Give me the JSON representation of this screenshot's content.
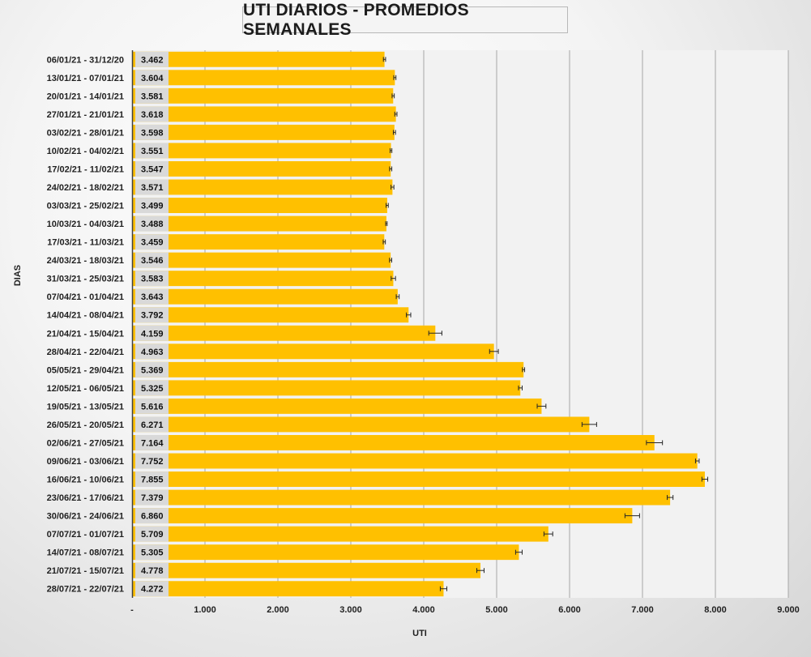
{
  "chart_data": {
    "type": "bar",
    "orientation": "horizontal",
    "title": "UTI DIARIOS - PROMEDIOS SEMANALES",
    "xlabel": "UTI",
    "ylabel": "DIAS",
    "xlim": [
      0,
      9000
    ],
    "x_ticks": [
      "-",
      "1.000",
      "2.000",
      "3.000",
      "4.000",
      "5.000",
      "6.000",
      "7.000",
      "8.000",
      "9.000"
    ],
    "grid": true,
    "legend": "none",
    "error_bars": true,
    "bar_color": "#FFC000",
    "label_box_color": "#D9D9D9",
    "categories": [
      "06/01/21 - 31/12/20",
      "13/01/21 - 07/01/21",
      "20/01/21 - 14/01/21",
      "27/01/21 - 21/01/21",
      "03/02/21 - 28/01/21",
      "10/02/21 - 04/02/21",
      "17/02/21 - 11/02/21",
      "24/02/21 - 18/02/21",
      "03/03/21 - 25/02/21",
      "10/03/21 - 04/03/21",
      "17/03/21 - 11/03/21",
      "24/03/21 - 18/03/21",
      "31/03/21 - 25/03/21",
      "07/04/21 - 01/04/21",
      "14/04/21 - 08/04/21",
      "21/04/21 - 15/04/21",
      "28/04/21 - 22/04/21",
      "05/05/21 - 29/04/21",
      "12/05/21 - 06/05/21",
      "19/05/21 - 13/05/21",
      "26/05/21 - 20/05/21",
      "02/06/21 - 27/05/21",
      "09/06/21 - 03/06/21",
      "16/06/21 - 10/06/21",
      "23/06/21 - 17/06/21",
      "30/06/21 - 24/06/21",
      "07/07/21 - 01/07/21",
      "14/07/21 - 08/07/21",
      "21/07/21 - 15/07/21",
      "28/07/21 - 22/07/21"
    ],
    "values": [
      3462,
      3604,
      3581,
      3618,
      3598,
      3551,
      3547,
      3571,
      3499,
      3488,
      3459,
      3546,
      3583,
      3643,
      3792,
      4159,
      4963,
      5369,
      5325,
      5616,
      6271,
      7164,
      7752,
      7855,
      7379,
      6860,
      5709,
      5305,
      4778,
      4272
    ],
    "value_labels": [
      "3.462",
      "3.604",
      "3.581",
      "3.618",
      "3.598",
      "3.551",
      "3.547",
      "3.571",
      "3.499",
      "3.488",
      "3.459",
      "3.546",
      "3.583",
      "3.643",
      "3.792",
      "4.159",
      "4.963",
      "5.369",
      "5.325",
      "5.616",
      "6.271",
      "7.164",
      "7.752",
      "7.855",
      "7.379",
      "6.860",
      "5.709",
      "5.305",
      "4.778",
      "4.272"
    ],
    "errors": [
      15,
      15,
      15,
      15,
      15,
      12,
      15,
      20,
      15,
      10,
      15,
      15,
      30,
      20,
      30,
      90,
      60,
      15,
      25,
      60,
      100,
      110,
      25,
      40,
      40,
      100,
      60,
      45,
      50,
      45
    ]
  }
}
